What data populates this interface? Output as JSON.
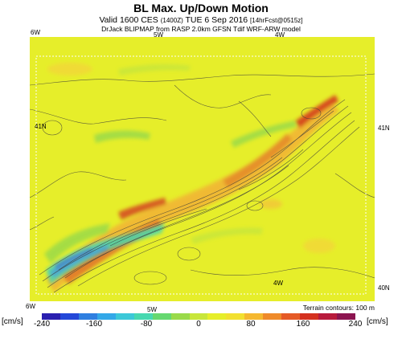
{
  "header": {
    "title": "BL Max. Up/Down Motion",
    "valid_line": "Valid 1600 CES",
    "valid_utc": "(1400Z)",
    "valid_date": "TUE 6 Sep 2016",
    "forecast": "[14hrFcst@0515z]",
    "model_line": "DrJack BLIPMAP from RASP 2.0km GFSN Tdif WRF-ARW model"
  },
  "map": {
    "labels": {
      "top_left": "6W",
      "top_mid": "5W",
      "top_right": "4W",
      "left_lat": "41N",
      "right_lat_top": "41N",
      "right_lat_bottom": "40N",
      "inner_4w": "4W",
      "bottom_left": "6W",
      "bottom_mid": "5W"
    },
    "contour_note": "Terrain contours: 100 m",
    "colors": {
      "background": "#e6ee2a",
      "terrain_contour": "#3a3a3a",
      "frame": "#ffffff"
    }
  },
  "colorbar": {
    "unit_left": "[cm/s]",
    "unit_right": "[cm/s]",
    "ticks": [
      "-240",
      "-160",
      "-80",
      "0",
      "80",
      "160",
      "240"
    ],
    "colors": [
      "#2a1fb0",
      "#2448d8",
      "#2f7fe0",
      "#33a8e8",
      "#3cc8d8",
      "#47d8b0",
      "#66d870",
      "#9ada4a",
      "#c8e63a",
      "#e6ee2a",
      "#f2e030",
      "#f5b830",
      "#ef8a2a",
      "#e55a26",
      "#d4301f",
      "#b81a3c",
      "#8c1450"
    ]
  }
}
